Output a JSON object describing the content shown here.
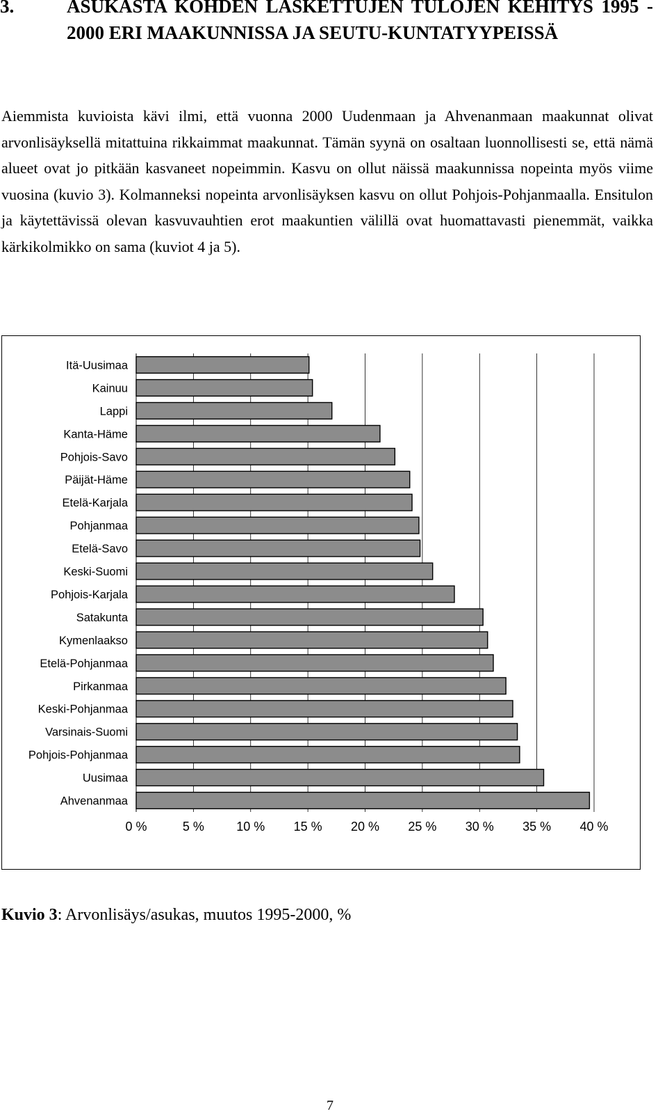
{
  "heading": {
    "number": "3.",
    "text": "ASUKASTA KOHDEN LASKETTUJEN TULOJEN KEHITYS 1995 - 2000 ERI MAAKUNNISSA JA SEUTU-KUNTATYYPEISSÄ"
  },
  "paragraph": "Aiemmista kuvioista kävi ilmi, että vuonna 2000 Uudenmaan ja Ahvenanmaan maakunnat olivat arvonlisäyksellä mitattuina rikkaimmat maakunnat. Tämän syynä on osaltaan luonnollisesti se, että nämä alueet ovat jo pitkään kasvaneet nopeimmin. Kasvu on ollut näissä maakunnissa nopeinta myös viime vuosina (kuvio 3). Kolmanneksi nopeinta arvonlisäyksen kasvu on ollut Pohjois-Pohjanmaalla. Ensitulon ja käytettävissä olevan kasvuvauhtien erot maakuntien välillä ovat huomattavasti pienemmät, vaikka kärkikolmikko on sama (kuviot 4 ja 5).",
  "chart_data": {
    "type": "bar",
    "orientation": "horizontal",
    "categories": [
      "Itä-Uusimaa",
      "Kainuu",
      "Lappi",
      "Kanta-Häme",
      "Pohjois-Savo",
      "Päijät-Häme",
      "Etelä-Karjala",
      "Pohjanmaa",
      "Etelä-Savo",
      "Keski-Suomi",
      "Pohjois-Karjala",
      "Satakunta",
      "Kymenlaakso",
      "Etelä-Pohjanmaa",
      "Pirkanmaa",
      "Keski-Pohjanmaa",
      "Varsinais-Suomi",
      "Pohjois-Pohjanmaa",
      "Uusimaa",
      "Ahvenanmaa"
    ],
    "values": [
      15.1,
      15.4,
      17.1,
      21.3,
      22.6,
      23.9,
      24.1,
      24.7,
      24.8,
      25.9,
      27.8,
      30.3,
      30.7,
      31.2,
      32.3,
      32.9,
      33.3,
      33.5,
      35.6,
      39.6
    ],
    "xlim": [
      0,
      40
    ],
    "xticks": [
      "0 %",
      "5 %",
      "10 %",
      "15 %",
      "20 %",
      "25 %",
      "30 %",
      "35 %",
      "40 %"
    ],
    "grid": true,
    "bar_color": "#8c8c8c"
  },
  "caption": {
    "label": "Kuvio 3",
    "text": ": Arvonlisäys/asukas, muutos 1995-2000, %"
  },
  "page_number": "7"
}
